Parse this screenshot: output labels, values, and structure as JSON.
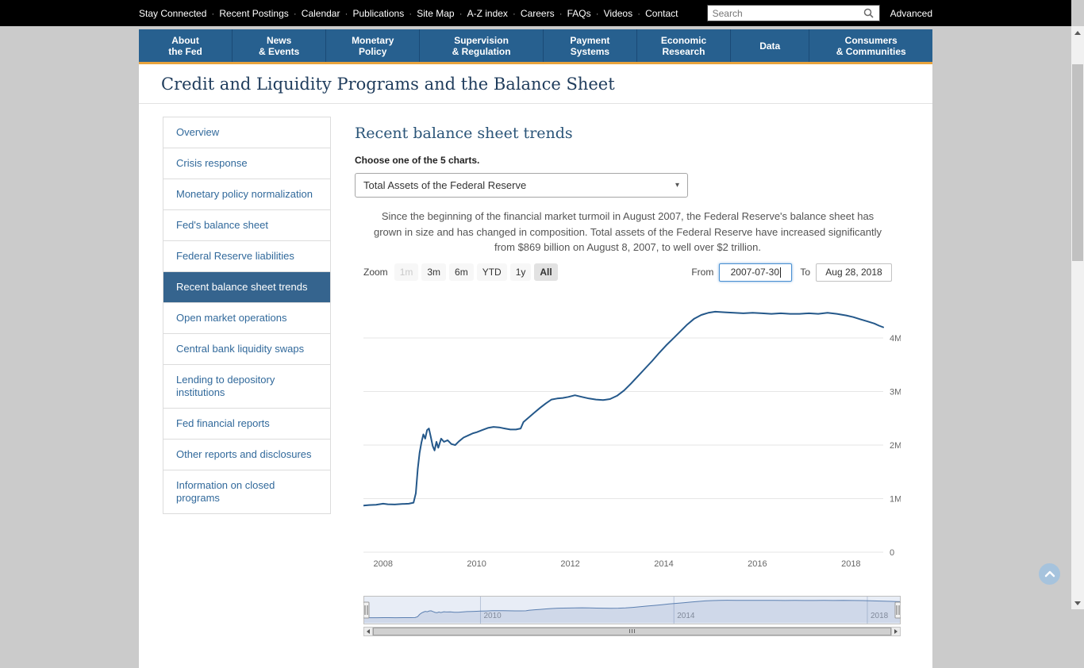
{
  "topbar": {
    "links": [
      "Stay Connected",
      "Recent Postings",
      "Calendar",
      "Publications",
      "Site Map",
      "A-Z index",
      "Careers",
      "FAQs",
      "Videos",
      "Contact"
    ],
    "search_placeholder": "Search",
    "advanced_label": "Advanced"
  },
  "nav": {
    "items": [
      {
        "line1": "About",
        "line2": "the Fed"
      },
      {
        "line1": "News",
        "line2": "& Events"
      },
      {
        "line1": "Monetary",
        "line2": "Policy"
      },
      {
        "line1": "Supervision",
        "line2": "& Regulation"
      },
      {
        "line1": "Payment",
        "line2": "Systems"
      },
      {
        "line1": "Economic",
        "line2": "Research"
      },
      {
        "line1": "Data",
        "line2": ""
      },
      {
        "line1": "Consumers",
        "line2": "& Communities"
      }
    ]
  },
  "page": {
    "title": "Credit and Liquidity Programs and the Balance Sheet"
  },
  "sidebar": {
    "items": [
      {
        "label": "Overview",
        "active": false
      },
      {
        "label": "Crisis response",
        "active": false
      },
      {
        "label": "Monetary policy normalization",
        "active": false
      },
      {
        "label": "Fed's balance sheet",
        "active": false
      },
      {
        "label": "Federal Reserve liabilities",
        "active": false
      },
      {
        "label": "Recent balance sheet trends",
        "active": true
      },
      {
        "label": "Open market operations",
        "active": false
      },
      {
        "label": "Central bank liquidity swaps",
        "active": false
      },
      {
        "label": "Lending to depository institutions",
        "active": false
      },
      {
        "label": "Fed financial reports",
        "active": false
      },
      {
        "label": "Other reports and disclosures",
        "active": false
      },
      {
        "label": "Information on closed programs",
        "active": false
      }
    ]
  },
  "main": {
    "heading": "Recent balance sheet trends",
    "chooser_label": "Choose one of the 5 charts.",
    "select_value": "Total Assets of the Federal Reserve",
    "description": "Since the beginning of the financial market turmoil in August 2007, the Federal Reserve's balance sheet has grown in size and has changed in composition. Total assets of the Federal Reserve have increased significantly from $869 billion on August 8, 2007, to well over $2 trillion.",
    "zoom": {
      "label": "Zoom",
      "buttons": [
        {
          "label": "1m",
          "state": "disabled"
        },
        {
          "label": "3m",
          "state": "normal"
        },
        {
          "label": "6m",
          "state": "normal"
        },
        {
          "label": "YTD",
          "state": "normal"
        },
        {
          "label": "1y",
          "state": "normal"
        },
        {
          "label": "All",
          "state": "selected"
        }
      ]
    },
    "range": {
      "from_label": "From",
      "from_value": "2007-07-30",
      "to_label": "To",
      "to_value": "Aug 28, 2018"
    }
  },
  "colors": {
    "nav_blue": "#27608f",
    "accent_orange": "#e8a33d",
    "sidebar_active": "#35648e",
    "series_line": "#24588a"
  },
  "chart_data": {
    "type": "line",
    "series_name": "Total Assets of the Federal Reserve",
    "values_unit": "USD millions",
    "x_range": [
      2007.58,
      2018.69
    ],
    "ylim": [
      0,
      4800000
    ],
    "line_color": "#24588a",
    "y_ticks": [
      {
        "value": 0,
        "label": "0"
      },
      {
        "value": 1000000,
        "label": "1M"
      },
      {
        "value": 2000000,
        "label": "2M"
      },
      {
        "value": 3000000,
        "label": "3M"
      },
      {
        "value": 4000000,
        "label": "4M"
      }
    ],
    "x_ticks": [
      2008,
      2010,
      2012,
      2014,
      2016,
      2018
    ],
    "navigator_ticks": [
      {
        "value": 2010,
        "label": "2010"
      },
      {
        "value": 2014,
        "label": "2014"
      },
      {
        "value": 2018,
        "label": "2018"
      }
    ],
    "points": [
      [
        2007.58,
        870000
      ],
      [
        2007.7,
        880000
      ],
      [
        2007.85,
        885000
      ],
      [
        2008.0,
        905000
      ],
      [
        2008.1,
        895000
      ],
      [
        2008.25,
        890000
      ],
      [
        2008.4,
        900000
      ],
      [
        2008.55,
        905000
      ],
      [
        2008.65,
        925000
      ],
      [
        2008.7,
        1100000
      ],
      [
        2008.74,
        1550000
      ],
      [
        2008.78,
        1850000
      ],
      [
        2008.82,
        2050000
      ],
      [
        2008.86,
        2200000
      ],
      [
        2008.9,
        2120000
      ],
      [
        2008.94,
        2280000
      ],
      [
        2008.98,
        2310000
      ],
      [
        2009.02,
        2150000
      ],
      [
        2009.06,
        1980000
      ],
      [
        2009.1,
        1900000
      ],
      [
        2009.14,
        2060000
      ],
      [
        2009.18,
        1950000
      ],
      [
        2009.24,
        2120000
      ],
      [
        2009.3,
        2060000
      ],
      [
        2009.38,
        2090000
      ],
      [
        2009.46,
        2020000
      ],
      [
        2009.54,
        2000000
      ],
      [
        2009.62,
        2070000
      ],
      [
        2009.72,
        2140000
      ],
      [
        2009.82,
        2180000
      ],
      [
        2009.92,
        2220000
      ],
      [
        2010.0,
        2240000
      ],
      [
        2010.12,
        2280000
      ],
      [
        2010.24,
        2320000
      ],
      [
        2010.36,
        2340000
      ],
      [
        2010.48,
        2330000
      ],
      [
        2010.6,
        2310000
      ],
      [
        2010.72,
        2290000
      ],
      [
        2010.84,
        2290000
      ],
      [
        2010.94,
        2310000
      ],
      [
        2011.0,
        2430000
      ],
      [
        2011.12,
        2520000
      ],
      [
        2011.24,
        2610000
      ],
      [
        2011.36,
        2700000
      ],
      [
        2011.48,
        2780000
      ],
      [
        2011.6,
        2850000
      ],
      [
        2011.72,
        2870000
      ],
      [
        2011.84,
        2880000
      ],
      [
        2011.96,
        2900000
      ],
      [
        2012.1,
        2930000
      ],
      [
        2012.25,
        2900000
      ],
      [
        2012.4,
        2870000
      ],
      [
        2012.55,
        2850000
      ],
      [
        2012.7,
        2840000
      ],
      [
        2012.85,
        2860000
      ],
      [
        2013.0,
        2920000
      ],
      [
        2013.15,
        3020000
      ],
      [
        2013.3,
        3150000
      ],
      [
        2013.45,
        3290000
      ],
      [
        2013.6,
        3430000
      ],
      [
        2013.75,
        3570000
      ],
      [
        2013.9,
        3720000
      ],
      [
        2014.05,
        3860000
      ],
      [
        2014.2,
        3990000
      ],
      [
        2014.35,
        4120000
      ],
      [
        2014.5,
        4250000
      ],
      [
        2014.65,
        4360000
      ],
      [
        2014.8,
        4430000
      ],
      [
        2014.95,
        4470000
      ],
      [
        2015.1,
        4490000
      ],
      [
        2015.3,
        4480000
      ],
      [
        2015.5,
        4470000
      ],
      [
        2015.7,
        4460000
      ],
      [
        2015.9,
        4470000
      ],
      [
        2016.1,
        4460000
      ],
      [
        2016.3,
        4450000
      ],
      [
        2016.5,
        4460000
      ],
      [
        2016.7,
        4450000
      ],
      [
        2016.9,
        4450000
      ],
      [
        2017.1,
        4460000
      ],
      [
        2017.3,
        4450000
      ],
      [
        2017.5,
        4470000
      ],
      [
        2017.7,
        4450000
      ],
      [
        2017.9,
        4420000
      ],
      [
        2018.05,
        4390000
      ],
      [
        2018.2,
        4350000
      ],
      [
        2018.35,
        4310000
      ],
      [
        2018.5,
        4270000
      ],
      [
        2018.6,
        4230000
      ],
      [
        2018.69,
        4200000
      ]
    ]
  }
}
